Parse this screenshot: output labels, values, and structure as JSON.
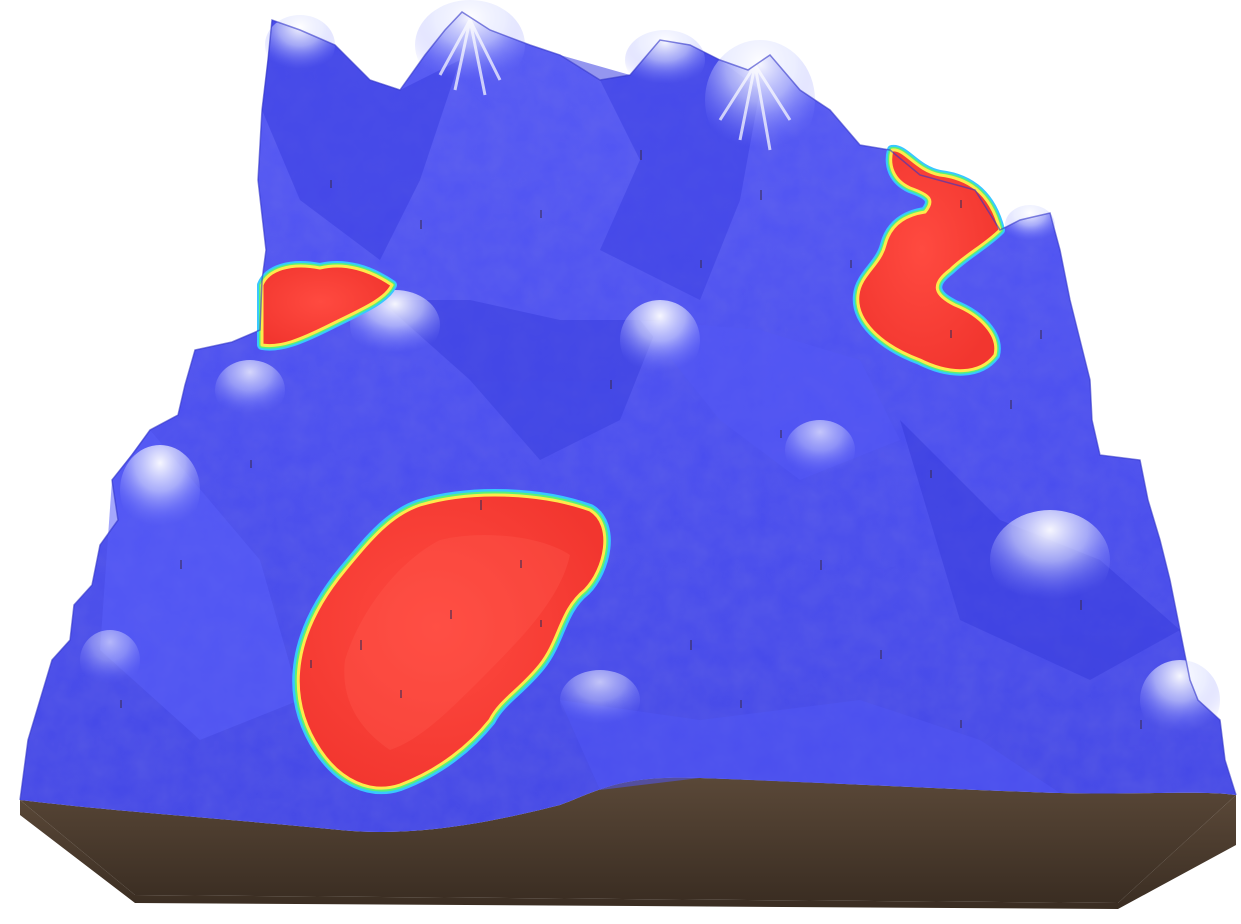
{
  "scene": {
    "type": "3d-terrain-render",
    "colors": {
      "background": "#ffffff",
      "terrain_surface": "#4b4ff2",
      "terrain_surface_light": "#6f73ff",
      "terrain_surface_dark": "#3337d6",
      "snow_ridges": "#e8ecff",
      "soil_base": "#4a3b2e",
      "soil_base_shadow": "#2f251c",
      "region_fill": "#f7403a",
      "region_edge_inner": "#ffe94a",
      "region_edge_mid": "#58f07a",
      "region_edge_outer": "#38c8ff"
    },
    "highlighted_regions": [
      {
        "name": "upper-left-region"
      },
      {
        "name": "upper-right-region"
      },
      {
        "name": "lower-center-region"
      }
    ]
  }
}
